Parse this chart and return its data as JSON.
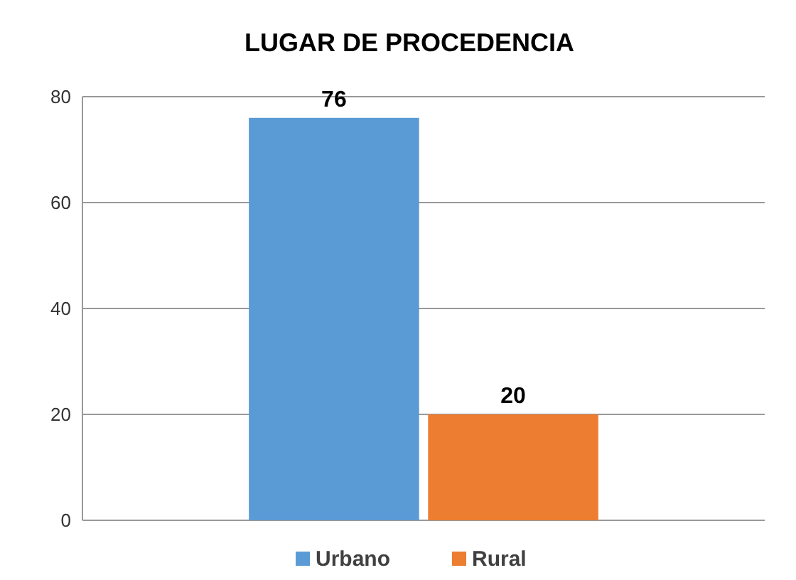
{
  "chart_data": {
    "type": "bar",
    "title": "LUGAR DE PROCEDENCIA",
    "categories": [
      null
    ],
    "series": [
      {
        "name": "Urbano",
        "color": "#5b9bd5",
        "values": [
          76
        ]
      },
      {
        "name": "Rural",
        "color": "#ed7d31",
        "values": [
          20
        ]
      }
    ],
    "ylim": [
      0,
      80
    ],
    "yticks": [
      0,
      20,
      40,
      60,
      80
    ],
    "grid": "y",
    "legend": "bottom",
    "data_labels": true
  }
}
